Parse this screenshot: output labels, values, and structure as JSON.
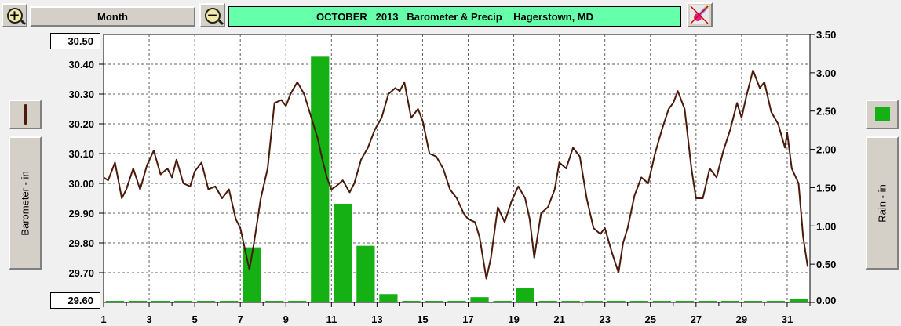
{
  "toolbar": {
    "zoom_in_glyph": "+",
    "zoom_out_glyph": "−",
    "period_label": "Month",
    "title": "OCTOBER   2013   Barometer & Precip    Hagerstown, MD"
  },
  "left_panel": {
    "axis_button_label": "Barometer - in",
    "legend_icon": "line-swatch-icon",
    "top_value_box": "30.50",
    "bottom_value_box": "29.60"
  },
  "right_panel": {
    "axis_button_label": "Rain - in",
    "legend_icon": "bar-swatch-icon"
  },
  "colors": {
    "pressure_line": "#4a1a0a",
    "rain_bars": "#14b014",
    "title_bg": "#66ffaa",
    "plot_bg": "#ffffff",
    "grid": "#606060"
  },
  "chart_data": {
    "type": "bar+line",
    "title": "OCTOBER   2013   Barometer & Precip    Hagerstown, MD",
    "xlabel": "",
    "ylabel_left": "Barometer - in",
    "ylabel_right": "Rain - in",
    "xlim": [
      1,
      32
    ],
    "x_ticks": [
      1,
      3,
      5,
      7,
      9,
      11,
      13,
      15,
      17,
      19,
      21,
      23,
      25,
      27,
      29,
      31
    ],
    "ylim_left": [
      29.6,
      30.5
    ],
    "yticks_left": [
      "30.40",
      "30.30",
      "30.20",
      "30.10",
      "30.00",
      "29.90",
      "29.80",
      "29.70"
    ],
    "ylim_right": [
      0,
      3.5
    ],
    "yticks_right": [
      "3.50",
      "3.00",
      "2.50",
      "2.00",
      "1.50",
      "1.00",
      "0.50",
      "0.00"
    ],
    "grid": true,
    "series": [
      {
        "name": "Barometer - in",
        "kind": "line",
        "x": [
          1.0,
          1.2,
          1.5,
          1.8,
          2.0,
          2.3,
          2.6,
          2.9,
          3.2,
          3.5,
          3.8,
          4.0,
          4.2,
          4.5,
          4.8,
          5.0,
          5.3,
          5.6,
          5.9,
          6.2,
          6.5,
          6.8,
          7.0,
          7.2,
          7.4,
          7.6,
          7.9,
          8.2,
          8.5,
          8.8,
          9.0,
          9.2,
          9.5,
          9.8,
          10.0,
          10.2,
          10.4,
          10.6,
          10.8,
          11.0,
          11.2,
          11.5,
          11.8,
          12.0,
          12.3,
          12.6,
          12.9,
          13.2,
          13.5,
          13.8,
          14.0,
          14.2,
          14.5,
          14.8,
          15.0,
          15.3,
          15.6,
          15.9,
          16.2,
          16.5,
          16.8,
          17.0,
          17.3,
          17.5,
          17.8,
          18.0,
          18.3,
          18.6,
          18.9,
          19.2,
          19.5,
          19.7,
          19.9,
          20.2,
          20.5,
          20.8,
          21.0,
          21.3,
          21.6,
          21.9,
          22.2,
          22.5,
          22.8,
          23.0,
          23.3,
          23.6,
          23.8,
          24.0,
          24.3,
          24.6,
          24.9,
          25.2,
          25.5,
          25.8,
          26.0,
          26.2,
          26.5,
          26.8,
          27.0,
          27.3,
          27.6,
          27.9,
          28.2,
          28.5,
          28.8,
          29.0,
          29.2,
          29.5,
          29.8,
          30.0,
          30.3,
          30.6,
          30.9,
          31.0,
          31.2,
          31.5,
          31.7,
          31.9
        ],
        "values": [
          30.02,
          30.01,
          30.07,
          29.95,
          29.98,
          30.05,
          29.98,
          30.06,
          30.11,
          30.03,
          30.05,
          30.02,
          30.08,
          30.0,
          29.99,
          30.04,
          30.07,
          29.98,
          29.99,
          29.95,
          29.98,
          29.88,
          29.85,
          29.78,
          29.71,
          29.8,
          29.95,
          30.05,
          30.27,
          30.28,
          30.26,
          30.3,
          30.34,
          30.3,
          30.25,
          30.2,
          30.15,
          30.08,
          30.02,
          29.98,
          29.99,
          30.01,
          29.97,
          30.0,
          30.08,
          30.12,
          30.18,
          30.22,
          30.3,
          30.32,
          30.31,
          30.34,
          30.22,
          30.25,
          30.21,
          30.1,
          30.09,
          30.05,
          29.98,
          29.95,
          29.9,
          29.88,
          29.87,
          29.82,
          29.68,
          29.75,
          29.92,
          29.87,
          29.94,
          29.99,
          29.95,
          29.88,
          29.75,
          29.9,
          29.92,
          29.98,
          30.07,
          30.05,
          30.12,
          30.09,
          29.95,
          29.85,
          29.83,
          29.85,
          29.77,
          29.7,
          29.8,
          29.85,
          29.96,
          30.02,
          30.0,
          30.1,
          30.18,
          30.25,
          30.27,
          30.31,
          30.25,
          30.05,
          29.95,
          29.95,
          30.05,
          30.02,
          30.11,
          30.18,
          30.27,
          30.22,
          30.29,
          30.38,
          30.32,
          30.34,
          30.24,
          30.2,
          30.12,
          30.17,
          30.05,
          30.0,
          29.82,
          29.72
        ]
      },
      {
        "name": "Rain - in",
        "kind": "bar",
        "x": [
          7.5,
          10.5,
          11.5,
          12.5,
          13.5,
          17.5,
          19.5,
          31.5
        ],
        "values": [
          0.72,
          3.21,
          1.29,
          0.74,
          0.11,
          0.07,
          0.19,
          0.05
        ],
        "baseline_marks": "0.00 every day"
      }
    ]
  }
}
